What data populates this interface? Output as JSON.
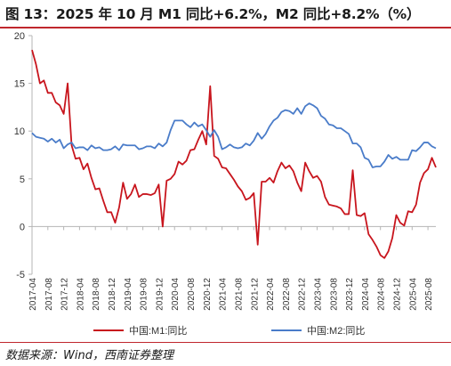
{
  "title": "图 13：2025 年 10 月 M1 同比+6.2%，M2 同比+8.2%（%）",
  "source": "数据来源：Wind，西南证券整理",
  "colors": {
    "m1": "#c8151d",
    "m2": "#4a7cc9",
    "accent": "#c0272d"
  },
  "chart_data": {
    "type": "line",
    "title": "图 13：2025 年 10 月 M1 同比+6.2%，M2 同比+8.2%（%）",
    "ylim": [
      -5,
      20
    ],
    "yticks": [
      -5,
      0,
      5,
      10,
      15,
      20
    ],
    "grid": false,
    "legend": "bottom",
    "x": [
      "2017-04",
      "2017-05",
      "2017-06",
      "2017-07",
      "2017-08",
      "2017-09",
      "2017-10",
      "2017-11",
      "2017-12",
      "2018-01",
      "2018-02",
      "2018-03",
      "2018-04",
      "2018-05",
      "2018-06",
      "2018-07",
      "2018-08",
      "2018-09",
      "2018-10",
      "2018-11",
      "2018-12",
      "2019-01",
      "2019-02",
      "2019-03",
      "2019-04",
      "2019-05",
      "2019-06",
      "2019-07",
      "2019-08",
      "2019-09",
      "2019-10",
      "2019-11",
      "2019-12",
      "2020-01",
      "2020-02",
      "2020-03",
      "2020-04",
      "2020-05",
      "2020-06",
      "2020-07",
      "2020-08",
      "2020-09",
      "2020-10",
      "2020-11",
      "2020-12",
      "2021-01",
      "2021-02",
      "2021-03",
      "2021-04",
      "2021-05",
      "2021-06",
      "2021-07",
      "2021-08",
      "2021-09",
      "2021-10",
      "2021-11",
      "2021-12",
      "2022-01",
      "2022-02",
      "2022-03",
      "2022-04",
      "2022-05",
      "2022-06",
      "2022-07",
      "2022-08",
      "2022-09",
      "2022-10",
      "2022-11",
      "2022-12",
      "2023-01",
      "2023-02",
      "2023-03",
      "2023-04",
      "2023-05",
      "2023-06",
      "2023-07",
      "2023-08",
      "2023-09",
      "2023-10",
      "2023-11",
      "2023-12",
      "2024-01",
      "2024-02",
      "2024-03",
      "2024-04",
      "2024-05",
      "2024-06",
      "2024-07",
      "2024-08",
      "2024-09",
      "2024-10",
      "2024-11",
      "2024-12",
      "2025-01",
      "2025-02",
      "2025-03",
      "2025-04",
      "2025-05",
      "2025-06",
      "2025-07",
      "2025-08",
      "2025-09",
      "2025-10"
    ],
    "xticks": [
      "2017-04",
      "2017-08",
      "2017-12",
      "2018-04",
      "2018-08",
      "2018-12",
      "2019-04",
      "2019-08",
      "2019-12",
      "2020-04",
      "2020-08",
      "2020-12",
      "2021-04",
      "2021-08",
      "2021-12",
      "2022-04",
      "2022-08",
      "2022-12",
      "2023-04",
      "2023-08",
      "2023-12",
      "2024-04",
      "2024-08",
      "2024-12",
      "2025-04",
      "2025-08"
    ],
    "series": [
      {
        "name": "中国:M1:同比",
        "color": "#c8151d",
        "values": [
          18.5,
          17.0,
          15.0,
          15.3,
          14.0,
          14.0,
          13.0,
          12.7,
          11.8,
          15.0,
          8.5,
          7.1,
          7.2,
          6.0,
          6.6,
          5.1,
          3.9,
          4.0,
          2.7,
          1.5,
          1.5,
          0.4,
          2.0,
          4.6,
          2.9,
          3.4,
          4.4,
          3.1,
          3.4,
          3.4,
          3.3,
          3.5,
          4.4,
          0.0,
          4.8,
          5.0,
          5.5,
          6.8,
          6.5,
          6.9,
          8.0,
          8.1,
          9.1,
          10.0,
          8.6,
          14.7,
          7.4,
          7.1,
          6.2,
          6.1,
          5.5,
          4.9,
          4.2,
          3.7,
          2.8,
          3.0,
          3.5,
          -1.9,
          4.7,
          4.7,
          5.1,
          4.6,
          5.8,
          6.7,
          6.1,
          6.4,
          5.8,
          4.6,
          3.7,
          6.7,
          5.8,
          5.1,
          5.3,
          4.7,
          3.1,
          2.3,
          2.2,
          2.1,
          1.9,
          1.3,
          1.3,
          5.9,
          1.2,
          1.1,
          1.4,
          -0.8,
          -1.4,
          -2.1,
          -3.0,
          -3.3,
          -2.6,
          -1.2,
          1.2,
          0.4,
          0.1,
          1.6,
          1.5,
          2.3,
          4.6,
          5.6,
          6.0,
          7.2,
          6.2
        ]
      },
      {
        "name": "中国:M2:同比",
        "color": "#4a7cc9",
        "values": [
          9.8,
          9.4,
          9.3,
          9.2,
          8.9,
          9.2,
          8.8,
          9.1,
          8.2,
          8.6,
          8.8,
          8.2,
          8.3,
          8.3,
          8.0,
          8.5,
          8.2,
          8.3,
          8.0,
          8.0,
          8.1,
          8.4,
          8.0,
          8.6,
          8.5,
          8.5,
          8.5,
          8.1,
          8.2,
          8.4,
          8.4,
          8.2,
          8.7,
          8.4,
          8.8,
          10.1,
          11.1,
          11.1,
          11.1,
          10.7,
          10.4,
          10.9,
          10.5,
          10.7,
          10.1,
          9.4,
          10.1,
          9.4,
          8.1,
          8.3,
          8.6,
          8.3,
          8.2,
          8.3,
          8.7,
          8.5,
          9.0,
          9.8,
          9.2,
          9.7,
          10.5,
          11.1,
          11.4,
          12.0,
          12.2,
          12.1,
          11.8,
          12.4,
          11.8,
          12.6,
          12.9,
          12.7,
          12.4,
          11.6,
          11.3,
          10.7,
          10.6,
          10.3,
          10.3,
          10.0,
          9.7,
          8.7,
          8.7,
          8.3,
          7.2,
          7.0,
          6.2,
          6.3,
          6.3,
          6.8,
          7.5,
          7.1,
          7.3,
          7.0,
          7.0,
          7.0,
          8.0,
          7.9,
          8.3,
          8.8,
          8.8,
          8.4,
          8.2
        ]
      }
    ]
  }
}
